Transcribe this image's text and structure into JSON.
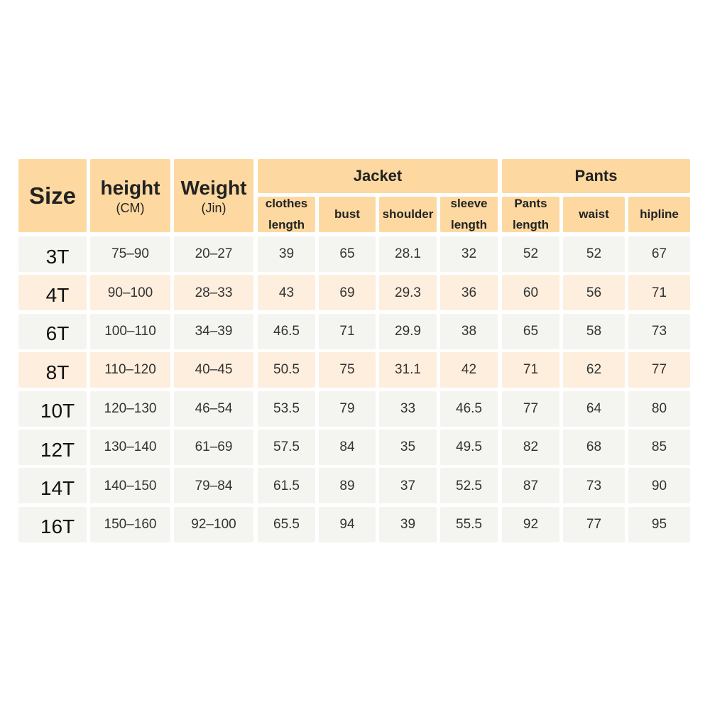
{
  "table": {
    "header": {
      "size": "Size",
      "height": {
        "label": "height",
        "unit": "(CM)"
      },
      "weight": {
        "label": "Weight",
        "unit": "(Jin)"
      },
      "groups": [
        {
          "label": "Jacket",
          "columns": [
            [
              "clothes",
              "length"
            ],
            [
              "bust"
            ],
            [
              "shoulder"
            ],
            [
              "sleeve",
              "length"
            ]
          ]
        },
        {
          "label": "Pants",
          "columns": [
            [
              "Pants",
              "length"
            ],
            [
              "waist"
            ],
            [
              "hipline"
            ]
          ]
        }
      ]
    },
    "rows": [
      [
        "3T",
        "75–90",
        "20–27",
        "39",
        "65",
        "28.1",
        "32",
        "52",
        "52",
        "67"
      ],
      [
        "4T",
        "90–100",
        "28–33",
        "43",
        "69",
        "29.3",
        "36",
        "60",
        "56",
        "71"
      ],
      [
        "6T",
        "100–110",
        "34–39",
        "46.5",
        "71",
        "29.9",
        "38",
        "65",
        "58",
        "73"
      ],
      [
        "8T",
        "110–120",
        "40–45",
        "50.5",
        "75",
        "31.1",
        "42",
        "71",
        "62",
        "77"
      ],
      [
        "10T",
        "120–130",
        "46–54",
        "53.5",
        "79",
        "33",
        "46.5",
        "77",
        "64",
        "80"
      ],
      [
        "12T",
        "130–140",
        "61–69",
        "57.5",
        "84",
        "35",
        "49.5",
        "82",
        "68",
        "85"
      ],
      [
        "14T",
        "140–150",
        "79–84",
        "61.5",
        "89",
        "37",
        "52.5",
        "87",
        "73",
        "90"
      ],
      [
        "16T",
        "150–160",
        "92–100",
        "65.5",
        "94",
        "39",
        "55.5",
        "92",
        "77",
        "95"
      ]
    ]
  }
}
